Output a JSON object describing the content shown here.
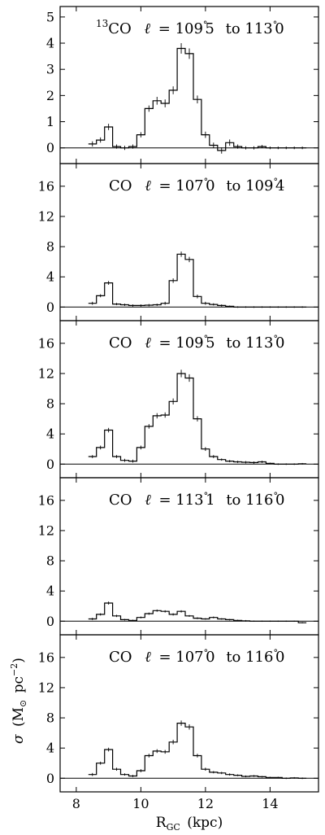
{
  "chart_data": {
    "type": "line",
    "shared_x_axis": {
      "xlabel_main": "R",
      "xlabel_sub": "GC",
      "xlabel_unit": "(kpc)",
      "xlim": [
        7.5,
        15.5
      ],
      "ticks": [
        8,
        10,
        12,
        14
      ]
    },
    "ylabel": {
      "sym": "σ",
      "open": "(M",
      "sun": "⊙",
      "unit": "pc",
      "exp": "−2",
      "close": ")"
    },
    "bin_width": 0.25,
    "panels": [
      {
        "iso": "13",
        "molecule": "CO",
        "lsym": "ℓ",
        "eq": "=",
        "l1": "109.5",
        "to": "to",
        "l2": "113.0",
        "ylim": [
          -0.6,
          5.4
        ],
        "yticks": [
          0,
          1,
          2,
          3,
          4,
          5
        ],
        "x": [
          8.5,
          8.75,
          9.0,
          9.25,
          9.5,
          9.75,
          10.0,
          10.25,
          10.5,
          10.75,
          11.0,
          11.25,
          11.5,
          11.75,
          12.0,
          12.25,
          12.5,
          12.75,
          13.0,
          13.25,
          13.5,
          13.75,
          14.0,
          14.25,
          14.5,
          14.75,
          15.0
        ],
        "values": [
          0.15,
          0.3,
          0.8,
          0.05,
          0.0,
          0.05,
          0.5,
          1.5,
          1.8,
          1.7,
          2.2,
          3.8,
          3.6,
          1.85,
          0.5,
          0.1,
          -0.1,
          0.2,
          0.05,
          0.0,
          0.0,
          0.05,
          0.0,
          0.0,
          0.0,
          0.0,
          0.0
        ],
        "errors": [
          0.1,
          0.1,
          0.12,
          0.08,
          0.08,
          0.08,
          0.1,
          0.12,
          0.15,
          0.15,
          0.15,
          0.2,
          0.2,
          0.15,
          0.12,
          0.1,
          0.12,
          0.12,
          0.08,
          0.06,
          0.06,
          0.06,
          0.05,
          0.05,
          0.05,
          0.05,
          0.05
        ]
      },
      {
        "iso": "",
        "molecule": "CO",
        "lsym": "ℓ",
        "eq": "=",
        "l1": "107.0",
        "to": "to",
        "l2": "109.4",
        "ylim": [
          -1.8,
          19.0
        ],
        "yticks": [
          0,
          4,
          8,
          12,
          16
        ],
        "x": [
          8.5,
          8.75,
          9.0,
          9.25,
          9.5,
          9.75,
          10.0,
          10.25,
          10.5,
          10.75,
          11.0,
          11.25,
          11.5,
          11.75,
          12.0,
          12.25,
          12.5,
          12.75,
          13.0,
          13.25,
          13.5,
          13.75,
          14.0,
          14.25,
          14.5,
          14.75,
          15.0
        ],
        "values": [
          0.5,
          1.5,
          3.2,
          0.4,
          0.3,
          0.2,
          0.2,
          0.25,
          0.3,
          0.5,
          3.5,
          7.0,
          6.3,
          1.4,
          0.5,
          0.35,
          0.2,
          0.1,
          0.0,
          0.0,
          0.0,
          0.0,
          0.0,
          0.0,
          0.0,
          0.0,
          0.0
        ],
        "errors": [
          0.2,
          0.2,
          0.25,
          0.15,
          0.15,
          0.15,
          0.15,
          0.15,
          0.15,
          0.2,
          0.3,
          0.35,
          0.35,
          0.25,
          0.2,
          0.15,
          0.15,
          0.1,
          0.1,
          0.1,
          0.1,
          0.1,
          0.1,
          0.1,
          0.1,
          0.1,
          0.1
        ]
      },
      {
        "iso": "",
        "molecule": "CO",
        "lsym": "ℓ",
        "eq": "=",
        "l1": "109.5",
        "to": "to",
        "l2": "113.0",
        "ylim": [
          -1.8,
          19.0
        ],
        "yticks": [
          0,
          4,
          8,
          12,
          16
        ],
        "x": [
          8.5,
          8.75,
          9.0,
          9.25,
          9.5,
          9.75,
          10.0,
          10.25,
          10.5,
          10.75,
          11.0,
          11.25,
          11.5,
          11.75,
          12.0,
          12.25,
          12.5,
          12.75,
          13.0,
          13.25,
          13.5,
          13.75,
          14.0,
          14.25,
          14.5,
          14.75,
          15.0
        ],
        "values": [
          1.0,
          2.2,
          4.5,
          1.0,
          0.5,
          0.4,
          2.2,
          5.0,
          6.4,
          6.5,
          8.3,
          12.0,
          11.4,
          6.0,
          2.0,
          1.0,
          0.6,
          0.4,
          0.3,
          0.25,
          0.2,
          0.3,
          0.1,
          0.0,
          0.0,
          0.0,
          0.05
        ],
        "errors": [
          0.2,
          0.25,
          0.3,
          0.2,
          0.2,
          0.2,
          0.25,
          0.3,
          0.35,
          0.35,
          0.4,
          0.5,
          0.5,
          0.35,
          0.25,
          0.2,
          0.15,
          0.15,
          0.15,
          0.15,
          0.15,
          0.15,
          0.1,
          0.1,
          0.1,
          0.1,
          0.1
        ]
      },
      {
        "iso": "",
        "molecule": "CO",
        "lsym": "ℓ",
        "eq": "=",
        "l1": "113.1",
        "to": "to",
        "l2": "116.0",
        "ylim": [
          -1.8,
          19.0
        ],
        "yticks": [
          0,
          4,
          8,
          12,
          16
        ],
        "x": [
          8.5,
          8.75,
          9.0,
          9.25,
          9.5,
          9.75,
          10.0,
          10.25,
          10.5,
          10.75,
          11.0,
          11.25,
          11.5,
          11.75,
          12.0,
          12.25,
          12.5,
          12.75,
          13.0,
          13.25,
          13.5,
          13.75,
          14.0,
          14.25,
          14.5,
          14.75,
          15.0
        ],
        "values": [
          0.3,
          0.9,
          2.4,
          0.7,
          0.2,
          0.1,
          0.5,
          1.0,
          1.4,
          1.3,
          0.9,
          1.3,
          0.7,
          0.4,
          0.3,
          0.5,
          0.3,
          0.2,
          0.1,
          0.05,
          0.0,
          0.0,
          0.0,
          0.0,
          0.0,
          0.0,
          -0.2
        ],
        "errors": [
          0.15,
          0.15,
          0.2,
          0.15,
          0.1,
          0.1,
          0.12,
          0.15,
          0.15,
          0.15,
          0.15,
          0.15,
          0.12,
          0.12,
          0.1,
          0.12,
          0.1,
          0.1,
          0.1,
          0.1,
          0.08,
          0.08,
          0.08,
          0.08,
          0.08,
          0.08,
          0.08
        ]
      },
      {
        "iso": "",
        "molecule": "CO",
        "lsym": "ℓ",
        "eq": "=",
        "l1": "107.0",
        "to": "to",
        "l2": "116.0",
        "ylim": [
          -1.8,
          19.0
        ],
        "yticks": [
          0,
          4,
          8,
          12,
          16
        ],
        "x": [
          8.5,
          8.75,
          9.0,
          9.25,
          9.5,
          9.75,
          10.0,
          10.25,
          10.5,
          10.75,
          11.0,
          11.25,
          11.5,
          11.75,
          12.0,
          12.25,
          12.5,
          12.75,
          13.0,
          13.25,
          13.5,
          13.75,
          14.0,
          14.25,
          14.5,
          14.75,
          15.0
        ],
        "values": [
          0.5,
          2.0,
          3.8,
          1.2,
          0.5,
          0.3,
          1.0,
          3.0,
          3.6,
          3.5,
          4.8,
          7.3,
          6.8,
          3.0,
          1.2,
          0.8,
          0.7,
          0.5,
          0.4,
          0.25,
          0.3,
          0.2,
          0.1,
          0.1,
          0.0,
          0.05,
          0.0
        ],
        "errors": [
          0.2,
          0.2,
          0.25,
          0.2,
          0.15,
          0.15,
          0.2,
          0.25,
          0.25,
          0.25,
          0.3,
          0.35,
          0.35,
          0.25,
          0.2,
          0.15,
          0.15,
          0.15,
          0.12,
          0.12,
          0.12,
          0.1,
          0.1,
          0.1,
          0.1,
          0.1,
          0.1
        ]
      }
    ]
  }
}
